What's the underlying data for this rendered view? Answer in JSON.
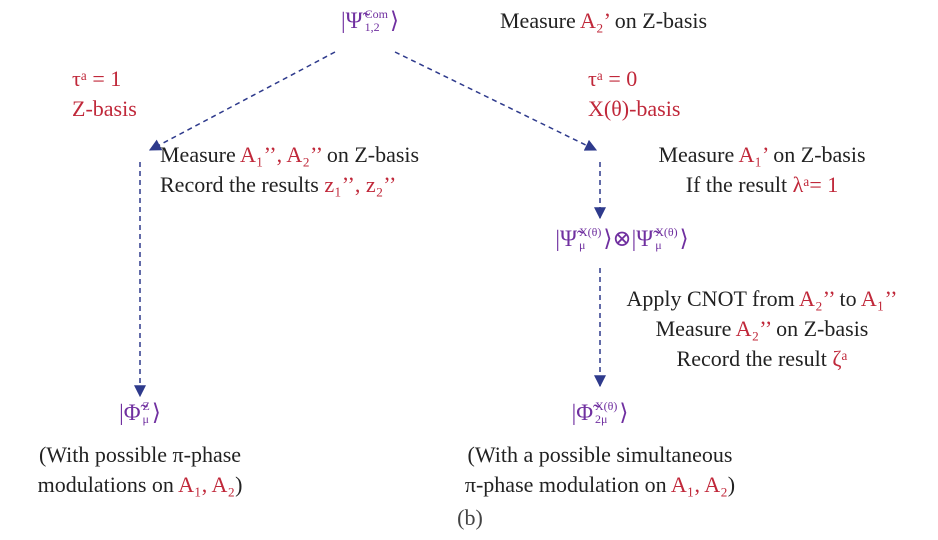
{
  "top_state": {
    "open": "|Ψ̃",
    "sup": "Com",
    "sub": "1,2",
    "close": "⟩"
  },
  "top_note": [
    [
      "Measure  ",
      {
        "text": "A₂’",
        "color": "#c0283a"
      },
      " on Z-basis"
    ]
  ],
  "left_branch": {
    "condition": [
      [
        {
          "text": "τᵃ = 1",
          "color": "#c0283a"
        }
      ],
      [
        {
          "text": "Z-basis",
          "color": "#c0283a"
        }
      ]
    ],
    "steps": [
      [
        "Measure ",
        {
          "text": "A₁’’, A₂’’",
          "color": "#c0283a"
        },
        " on Z-basis"
      ],
      [
        "Record the results ",
        {
          "text": "z₁’’, z₂’’",
          "color": "#c0283a"
        }
      ]
    ],
    "result": {
      "open": "|Φ̃",
      "sup": "Z",
      "sub": "μ",
      "close": "⟩"
    },
    "note": [
      [
        "(With possible π-phase"
      ],
      [
        "modulations on ",
        {
          "text": "A₁, A₂",
          "color": "#c0283a"
        },
        ")"
      ]
    ]
  },
  "right_branch": {
    "condition": [
      [
        {
          "text": "τᵃ = 0",
          "color": "#c0283a"
        }
      ],
      [
        {
          "text": "X(θ)-basis",
          "color": "#c0283a"
        }
      ]
    ],
    "steps": [
      [
        "Measure ",
        {
          "text": "A₁’",
          "color": "#c0283a"
        },
        " on Z-basis"
      ],
      [
        "If the result ",
        {
          "text": "λᵃ= 1",
          "color": "#c0283a"
        }
      ]
    ],
    "middle_state": {
      "left": {
        "open": "|Ψ̃",
        "sup": "X(θ)",
        "sub": "μ",
        "close": "⟩"
      },
      "join": "⊗",
      "right": {
        "open": "|Ψ̃",
        "sup": "X(θ)",
        "sub": "μ",
        "close": "⟩"
      }
    },
    "steps2": [
      [
        "Apply CNOT from ",
        {
          "text": "A₂’’",
          "color": "#c0283a"
        },
        " to ",
        {
          "text": "A₁’’",
          "color": "#c0283a"
        }
      ],
      [
        "Measure  ",
        {
          "text": "A₂’’",
          "color": "#c0283a"
        },
        " on Z-basis"
      ],
      [
        "Record the result  ",
        {
          "text": "ζᵃ",
          "color": "#c0283a"
        }
      ]
    ],
    "result": {
      "open": "|Φ̃",
      "sup": "X(θ)",
      "sub": "2μ",
      "close": "⟩"
    },
    "note": [
      [
        "(With a possible simultaneous"
      ],
      [
        "π-phase modulation on ",
        {
          "text": "A₁, A₂",
          "color": "#c0283a"
        },
        ")"
      ]
    ]
  },
  "caption": "(b)"
}
